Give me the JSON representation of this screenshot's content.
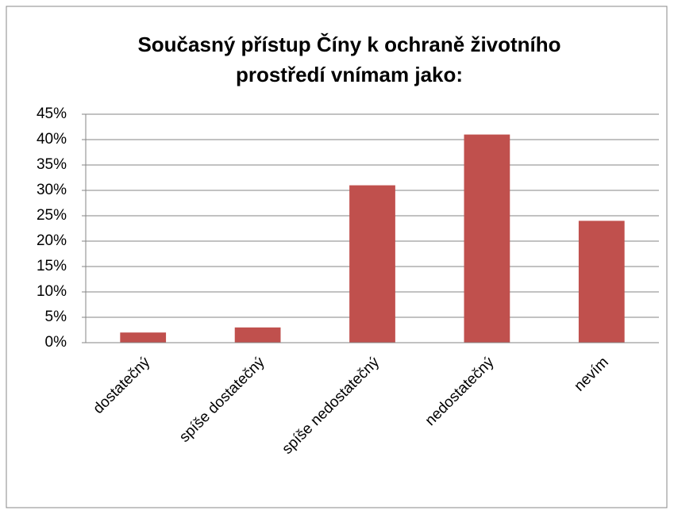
{
  "chart_data": {
    "type": "bar",
    "title": [
      "Současný přístup Číny k ochraně životního",
      "prostředí vnímam jako:"
    ],
    "categories": [
      "dostatečný",
      "spíše dostatečný",
      "spíše nedostatečný",
      "nedostatečný",
      "nevím"
    ],
    "values": [
      2,
      3,
      31,
      41,
      24
    ],
    "color": "#c0504d",
    "ylim": [
      0,
      45
    ],
    "yticks": [
      {
        "value": 0,
        "label": "0%"
      },
      {
        "value": 5,
        "label": "5%"
      },
      {
        "value": 10,
        "label": "10%"
      },
      {
        "value": 15,
        "label": "15%"
      },
      {
        "value": 20,
        "label": "20%"
      },
      {
        "value": 25,
        "label": "25%"
      },
      {
        "value": 30,
        "label": "30%"
      },
      {
        "value": 35,
        "label": "35%"
      },
      {
        "value": 40,
        "label": "40%"
      },
      {
        "value": 45,
        "label": "45%"
      }
    ],
    "grid": true
  }
}
